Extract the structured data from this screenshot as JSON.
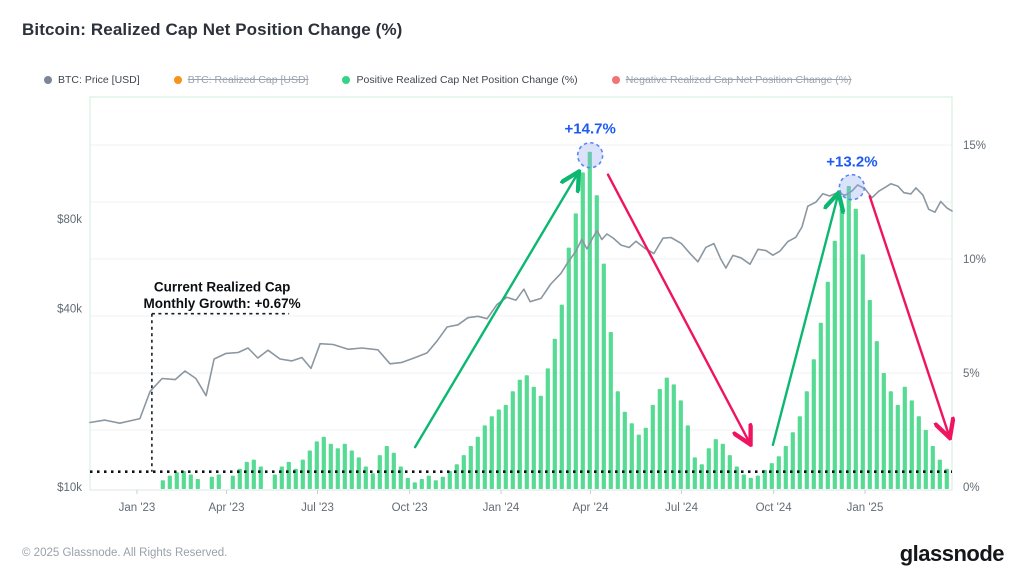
{
  "page": {
    "title": "Bitcoin: Realized Cap Net Position Change (%)"
  },
  "legend": {
    "items": [
      {
        "label": "BTC: Price [USD]",
        "color": "#7b8794",
        "disabled": false
      },
      {
        "label": "BTC: Realized Cap [USD]",
        "color": "#f7931a",
        "disabled": true
      },
      {
        "label": "Positive Realized Cap Net Position Change (%)",
        "color": "#33d483",
        "disabled": false
      },
      {
        "label": "Negative Realized Cap Net Position Change (%)",
        "color": "#f47272",
        "disabled": true
      }
    ]
  },
  "footer": {
    "copyright": "© 2025 Glassnode. All Rights Reserved.",
    "brand": "glassnode"
  },
  "annotations": {
    "peaks": [
      {
        "label": "+14.7%",
        "t": 2024.245,
        "circle_pct": 14.55,
        "label_pct": 15.73,
        "color": "#1d5bf0"
      },
      {
        "label": "+13.2%",
        "t": 2024.964,
        "circle_pct": 13.15,
        "label_pct": 14.28,
        "color": "#1d5bf0"
      }
    ],
    "callout": {
      "line1": "Current Realized Cap",
      "line2": "Monthly Growth: +0.67%",
      "value_pct": 0.67,
      "t_corner": 2023.041,
      "t_line_end": 2023.418,
      "pct_level": 7.6,
      "text_t": 2023.234
    },
    "dotted_level_pct": 0.67,
    "arrows": [
      {
        "color": "#0cb871",
        "from_t": 2023.764,
        "from_pct": 1.75,
        "to_t": 2024.209,
        "to_pct": 13.7
      },
      {
        "color": "#f0135f",
        "from_t": 2024.294,
        "from_pct": 13.7,
        "to_t": 2024.681,
        "to_pct": 2.0
      },
      {
        "color": "#0cb871",
        "from_t": 2024.747,
        "from_pct": 1.85,
        "to_t": 2024.925,
        "to_pct": 12.75
      },
      {
        "color": "#f0135f",
        "from_t": 2025.013,
        "from_pct": 12.75,
        "to_t": 2025.23,
        "to_pct": 2.3
      }
    ]
  },
  "chart_data": {
    "type": "mixed",
    "title": "Bitcoin: Realized Cap Net Position Change (%)",
    "x_domain_years": [
      2022.871,
      2025.239
    ],
    "x_axis": {
      "ticks": [
        {
          "t": 2023.0,
          "label": "Jan '23"
        },
        {
          "t": 2023.246,
          "label": "Apr '23"
        },
        {
          "t": 2023.496,
          "label": "Jul '23"
        },
        {
          "t": 2023.749,
          "label": "Oct '23"
        },
        {
          "t": 2024.0,
          "label": "Jan '24"
        },
        {
          "t": 2024.246,
          "label": "Apr '24"
        },
        {
          "t": 2024.496,
          "label": "Jul '24"
        },
        {
          "t": 2024.749,
          "label": "Oct '24"
        },
        {
          "t": 2025.0,
          "label": "Jan '25"
        }
      ]
    },
    "y_left": {
      "type": "log",
      "unit": "USD",
      "ticks": [
        {
          "value": 10000,
          "label": "$10k"
        },
        {
          "value": 40000,
          "label": "$40k"
        },
        {
          "value": 80000,
          "label": "$80k"
        }
      ]
    },
    "y_right": {
      "type": "linear",
      "unit": "%",
      "domain": [
        0,
        17.2
      ],
      "gridline_step_pct": 2.5,
      "ticks": [
        {
          "value": 0,
          "label": "0%"
        },
        {
          "value": 5,
          "label": "5%"
        },
        {
          "value": 10,
          "label": "10%"
        },
        {
          "value": 15,
          "label": "15%"
        }
      ]
    },
    "series": [
      {
        "name": "BTC: Price [USD]",
        "type": "line",
        "axis": "left",
        "color": "#8b97a1",
        "points": [
          [
            2022.871,
            16500
          ],
          [
            2022.912,
            16800
          ],
          [
            2022.953,
            16400
          ],
          [
            2023.008,
            17000
          ],
          [
            2023.036,
            21000
          ],
          [
            2023.069,
            23200
          ],
          [
            2023.105,
            23000
          ],
          [
            2023.132,
            24600
          ],
          [
            2023.162,
            23200
          ],
          [
            2023.19,
            20300
          ],
          [
            2023.212,
            27000
          ],
          [
            2023.245,
            28200
          ],
          [
            2023.278,
            28400
          ],
          [
            2023.305,
            29400
          ],
          [
            2023.332,
            27200
          ],
          [
            2023.36,
            28900
          ],
          [
            2023.393,
            27000
          ],
          [
            2023.426,
            26600
          ],
          [
            2023.453,
            27300
          ],
          [
            2023.478,
            25100
          ],
          [
            2023.503,
            30400
          ],
          [
            2023.539,
            30200
          ],
          [
            2023.58,
            29100
          ],
          [
            2023.618,
            29400
          ],
          [
            2023.662,
            29000
          ],
          [
            2023.695,
            26000
          ],
          [
            2023.728,
            26300
          ],
          [
            2023.761,
            27200
          ],
          [
            2023.797,
            28300
          ],
          [
            2023.824,
            31000
          ],
          [
            2023.852,
            34600
          ],
          [
            2023.882,
            35200
          ],
          [
            2023.909,
            37200
          ],
          [
            2023.937,
            37600
          ],
          [
            2023.962,
            36900
          ],
          [
            2023.989,
            41200
          ],
          [
            2024.016,
            43600
          ],
          [
            2024.041,
            42600
          ],
          [
            2024.063,
            46400
          ],
          [
            2024.08,
            42100
          ],
          [
            2024.11,
            43200
          ],
          [
            2024.137,
            48300
          ],
          [
            2024.165,
            52500
          ],
          [
            2024.184,
            57200
          ],
          [
            2024.206,
            62400
          ],
          [
            2024.222,
            68300
          ],
          [
            2024.236,
            63400
          ],
          [
            2024.253,
            69500
          ],
          [
            2024.264,
            73100
          ],
          [
            2024.277,
            68200
          ],
          [
            2024.291,
            71200
          ],
          [
            2024.308,
            69000
          ],
          [
            2024.33,
            65300
          ],
          [
            2024.352,
            64100
          ],
          [
            2024.371,
            67300
          ],
          [
            2024.396,
            63600
          ],
          [
            2024.42,
            61200
          ],
          [
            2024.445,
            68900
          ],
          [
            2024.467,
            69300
          ],
          [
            2024.495,
            66200
          ],
          [
            2024.519,
            61300
          ],
          [
            2024.541,
            57400
          ],
          [
            2024.563,
            64200
          ],
          [
            2024.585,
            66100
          ],
          [
            2024.604,
            58600
          ],
          [
            2024.618,
            54700
          ],
          [
            2024.637,
            60300
          ],
          [
            2024.659,
            59200
          ],
          [
            2024.684,
            56300
          ],
          [
            2024.706,
            63200
          ],
          [
            2024.728,
            62600
          ],
          [
            2024.747,
            60400
          ],
          [
            2024.766,
            62300
          ],
          [
            2024.788,
            67100
          ],
          [
            2024.81,
            69400
          ],
          [
            2024.827,
            75200
          ],
          [
            2024.843,
            88300
          ],
          [
            2024.865,
            91200
          ],
          [
            2024.884,
            97300
          ],
          [
            2024.903,
            95600
          ],
          [
            2024.925,
            98200
          ],
          [
            2024.945,
            96100
          ],
          [
            2024.964,
            99300
          ],
          [
            2024.98,
            104200
          ],
          [
            2025.0,
            101100
          ],
          [
            2025.019,
            94300
          ],
          [
            2025.038,
            99200
          ],
          [
            2025.057,
            102400
          ],
          [
            2025.071,
            105100
          ],
          [
            2025.09,
            103200
          ],
          [
            2025.107,
            98100
          ],
          [
            2025.126,
            97200
          ],
          [
            2025.14,
            101800
          ],
          [
            2025.159,
            96300
          ],
          [
            2025.175,
            86200
          ],
          [
            2025.192,
            84300
          ],
          [
            2025.208,
            91600
          ],
          [
            2025.225,
            87200
          ],
          [
            2025.239,
            85100
          ]
        ]
      },
      {
        "name": "Positive Realized Cap Net Position Change (%)",
        "type": "bar",
        "axis": "right",
        "color": "#45d688",
        "start_t": 2023.071,
        "step_t": 0.01923,
        "values": [
          0.3,
          0.5,
          0.65,
          0.7,
          0.55,
          0.35,
          0,
          0.45,
          0.55,
          0,
          0.5,
          0.8,
          1.1,
          1.2,
          0.9,
          0,
          0.55,
          0.9,
          1.1,
          0.8,
          1.2,
          1.6,
          2.0,
          2.2,
          1.9,
          1.7,
          1.9,
          1.6,
          1.3,
          0.9,
          0.6,
          1.4,
          1.8,
          1.5,
          0.9,
          0.4,
          0.2,
          0.35,
          0.5,
          0.3,
          0.45,
          0.7,
          1.0,
          1.4,
          1.8,
          2.2,
          2.7,
          3.1,
          3.4,
          3.6,
          4.2,
          4.7,
          4.9,
          4.4,
          4.0,
          5.2,
          6.5,
          8.0,
          10.5,
          12.0,
          13.8,
          14.7,
          12.8,
          9.8,
          6.8,
          4.2,
          3.3,
          2.8,
          2.3,
          2.6,
          3.6,
          4.3,
          4.8,
          4.5,
          3.8,
          2.7,
          1.3,
          1.0,
          1.7,
          2.1,
          1.9,
          1.4,
          0.9,
          0.55,
          0.4,
          0.5,
          0.75,
          1.05,
          1.35,
          1.8,
          2.4,
          3.1,
          4.2,
          5.6,
          7.2,
          9.0,
          10.8,
          12.2,
          13.2,
          12.2,
          10.2,
          8.2,
          6.4,
          5.0,
          4.2,
          3.6,
          4.4,
          3.8,
          3.1,
          2.5,
          1.8,
          1.2,
          0.8
        ]
      }
    ]
  }
}
